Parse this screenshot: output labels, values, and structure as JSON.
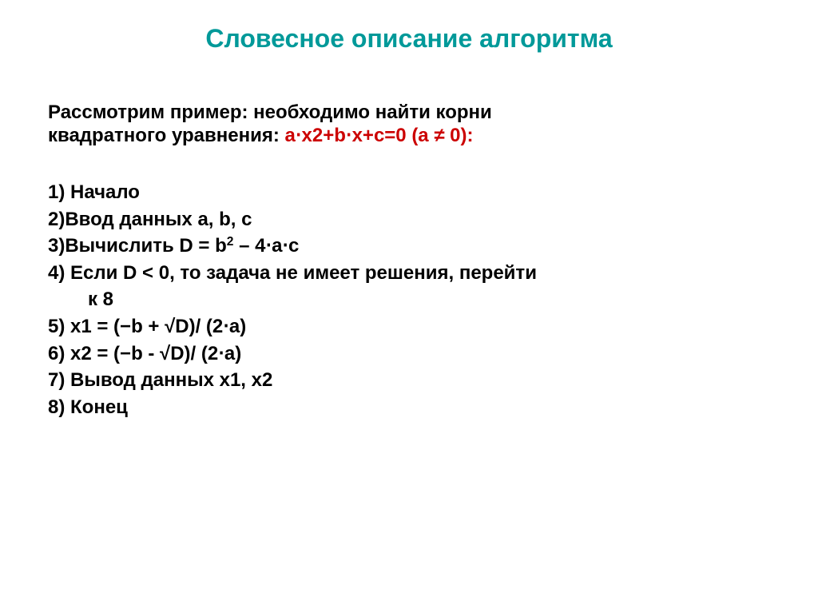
{
  "colors": {
    "title": "#009999",
    "body": "#000000",
    "equation": "#cc0000"
  },
  "fontsizes": {
    "title": 32,
    "body": 24
  },
  "title": "Словесное описание алгоритма",
  "intro_line1": "Рассмотрим пример: необходимо найти корни",
  "intro_line2_prefix": "квадратного уравнения: ",
  "equation_part1": "a",
  "equation_dot": "⋅",
  "equation_x": "x",
  "equation_sup2": "2",
  "equation_plus_b": "+b",
  "equation_plus_c": "+c=0 (a ≠ 0):",
  "steps": {
    "s1": "1) Начало",
    "s2": "2)Ввод данных a, b, c",
    "s3_prefix": "3)Вычислить D = b",
    "s3_sup": "2",
    "s3_suffix": " – 4⋅a⋅c",
    "s4": "4) Если D < 0,  то задача не имеет решения, перейти",
    "s4_cont": "к 8",
    "s5": "5)    x1 = (−b + √D)/ (2⋅a)",
    "s6": "6)    x2 = (−b - √D)/ (2⋅a)",
    "s7": "7)    Вывод данных  x1, x2",
    "s8": "8) Конец"
  }
}
